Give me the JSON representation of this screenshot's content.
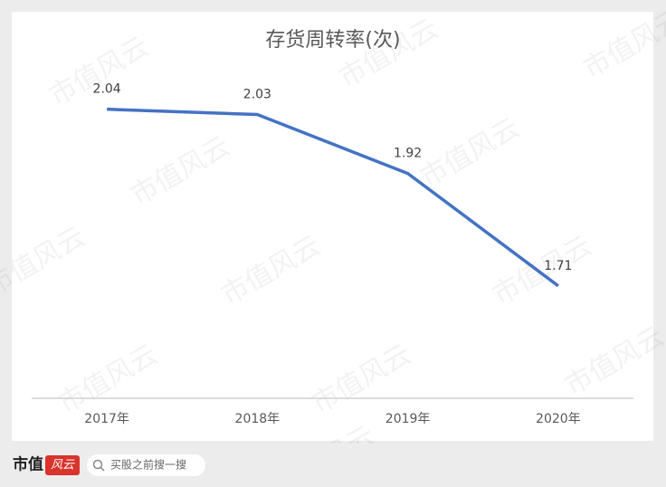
{
  "chart_data": {
    "type": "line",
    "title": "存货周转率(次)",
    "categories": [
      "2017年",
      "2018年",
      "2019年",
      "2020年"
    ],
    "series": [
      {
        "name": "存货周转率",
        "color": "#4472c4",
        "values": [
          2.04,
          2.03,
          1.92,
          1.71
        ]
      }
    ],
    "ylim": [
      1.5,
      2.2
    ]
  },
  "watermark": "市值风云",
  "footer": {
    "logo": "市值",
    "logo_mark": "风云",
    "search_placeholder": "买股之前搜一搜"
  }
}
